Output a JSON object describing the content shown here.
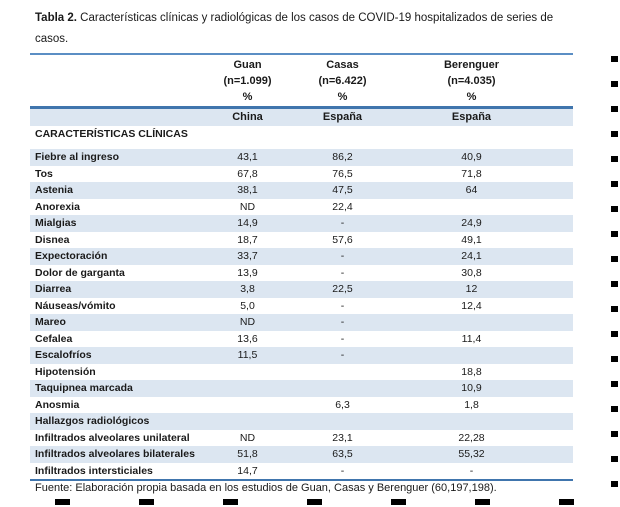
{
  "title": {
    "bold": "Tabla 2.",
    "rest": " Características clínicas y radiológicas de los casos de COVID-19 hospitalizados de series de casos."
  },
  "table": {
    "columns": [
      {
        "name": "Guan",
        "n": "(n=1.099)",
        "unit": "%",
        "country": "China"
      },
      {
        "name": "Casas",
        "n": "(n=6.422)",
        "unit": "%",
        "country": "España"
      },
      {
        "name": "Berenguer",
        "n": "(n=4.035)",
        "unit": "%",
        "country": "España"
      }
    ],
    "rows": [
      {
        "label": "CARACTERÍSTICAS CLÍNICAS",
        "section": true,
        "values": [
          "",
          "",
          ""
        ]
      },
      {
        "label": "Fiebre al ingreso",
        "values": [
          "43,1",
          "86,2",
          "40,9"
        ]
      },
      {
        "label": "Tos",
        "values": [
          "67,8",
          "76,5",
          "71,8"
        ]
      },
      {
        "label": "Astenia",
        "values": [
          "38,1",
          "47,5",
          "64"
        ]
      },
      {
        "label": "Anorexia",
        "values": [
          "ND",
          "22,4",
          ""
        ]
      },
      {
        "label": "Mialgias",
        "values": [
          "14,9",
          "-",
          "24,9"
        ]
      },
      {
        "label": "Disnea",
        "values": [
          "18,7",
          "57,6",
          "49,1"
        ]
      },
      {
        "label": "Expectoración",
        "values": [
          "33,7",
          "-",
          "24,1"
        ]
      },
      {
        "label": "Dolor de garganta",
        "values": [
          "13,9",
          "-",
          "30,8"
        ]
      },
      {
        "label": "Diarrea",
        "values": [
          "3,8",
          "22,5",
          "12"
        ]
      },
      {
        "label": "Náuseas/vómito",
        "values": [
          "5,0",
          "-",
          "12,4"
        ]
      },
      {
        "label": "Mareo",
        "values": [
          "ND",
          "-",
          ""
        ]
      },
      {
        "label": "Cefalea",
        "values": [
          "13,6",
          "-",
          "11,4"
        ]
      },
      {
        "label": "Escalofríos",
        "values": [
          "11,5",
          "-",
          ""
        ]
      },
      {
        "label": "Hipotensión",
        "values": [
          "",
          "",
          "18,8"
        ]
      },
      {
        "label": "Taquipnea marcada",
        "values": [
          "",
          "",
          "10,9"
        ]
      },
      {
        "label": "Anosmia",
        "values": [
          "",
          "6,3",
          "1,8"
        ]
      },
      {
        "label": "Hallazgos radiológicos",
        "section": true,
        "values": [
          "",
          "",
          ""
        ]
      },
      {
        "label": "Infiltrados alveolares unilateral",
        "values": [
          "ND",
          "23,1",
          "22,28"
        ]
      },
      {
        "label": "Infiltrados alveolares bilaterales",
        "values": [
          "51,8",
          "63,5",
          "55,32"
        ]
      },
      {
        "label": "Infiltrados intersticiales",
        "values": [
          "14,7",
          "-",
          "-"
        ]
      }
    ],
    "source": "Fuente: Elaboración propia basada en los estudios de Guan, Casas y Berenguer  (60,197,198)."
  },
  "colors": {
    "row_shading": "#dce6f1",
    "border_blue": "#4075ad",
    "border_blue_light": "#5b8ec4",
    "text": "#1a1a1a",
    "selection_dash": "#000000"
  }
}
